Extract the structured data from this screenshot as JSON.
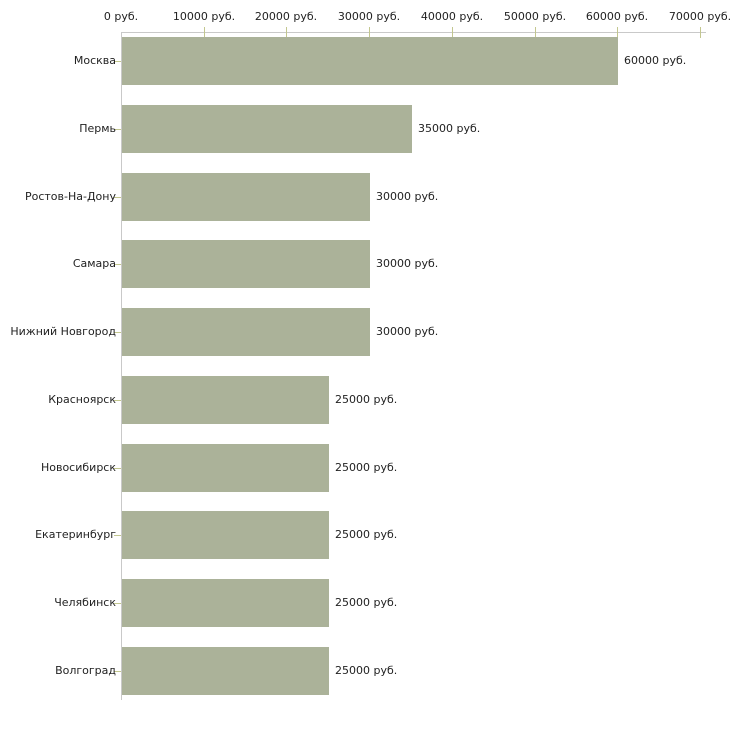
{
  "chart_data": {
    "type": "bar",
    "orientation": "horizontal",
    "title": "",
    "categories": [
      "Москва",
      "Пермь",
      "Ростов-На-Дону",
      "Самара",
      "Нижний Новгород",
      "Красноярск",
      "Новосибирск",
      "Екатеринбург",
      "Челябинск",
      "Волгоград"
    ],
    "values": [
      60000,
      35000,
      30000,
      30000,
      30000,
      25000,
      25000,
      25000,
      25000,
      25000
    ],
    "value_labels": [
      "60000 руб.",
      "35000 руб.",
      "30000 руб.",
      "30000 руб.",
      "30000 руб.",
      "25000 руб.",
      "25000 руб.",
      "25000 руб.",
      "25000 руб.",
      "25000 руб."
    ],
    "unit": "руб.",
    "xlabel": "",
    "ylabel": "",
    "xlim": [
      0,
      70000
    ],
    "x_ticks": [
      0,
      10000,
      20000,
      30000,
      40000,
      50000,
      60000,
      70000
    ],
    "x_tick_labels": [
      "0 руб.",
      "10000 руб.",
      "20000 руб.",
      "30000 руб.",
      "40000 руб.",
      "50000 руб.",
      "60000 руб.",
      "70000 руб."
    ],
    "grid": false,
    "legend_position": "none",
    "colors": {
      "bar": "#abb299",
      "axis_line": "#c9c9c9",
      "tick": "#c3c78f",
      "text": "#222222",
      "background": "#ffffff"
    }
  }
}
